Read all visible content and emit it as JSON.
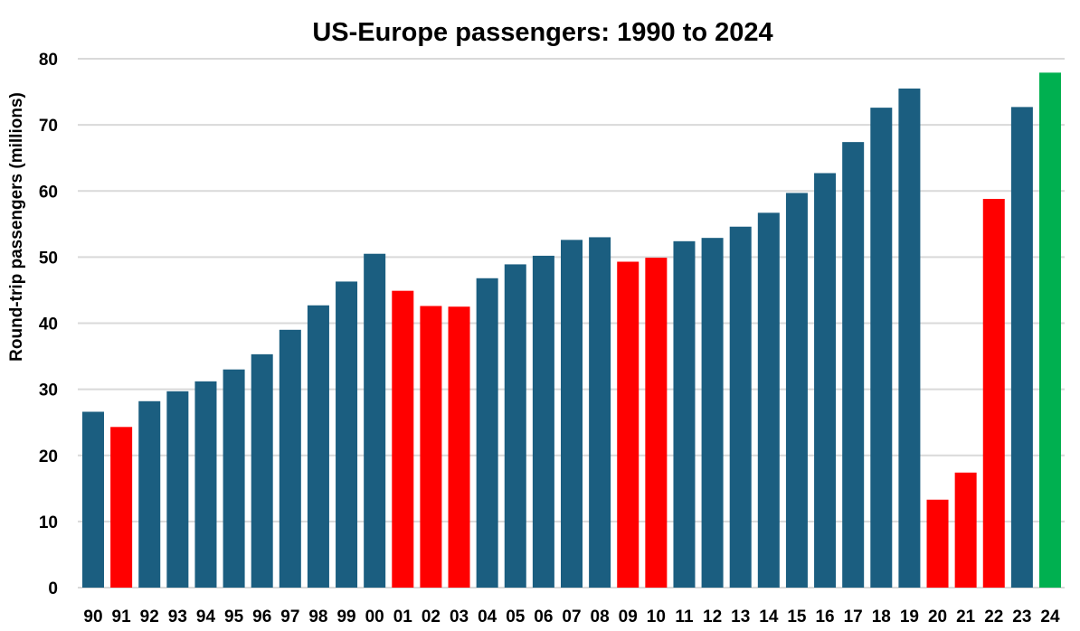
{
  "chart_data": {
    "type": "bar",
    "title": "US-Europe passengers: 1990 to 2024",
    "xlabel": "",
    "ylabel": "Round-trip passengers (millions)",
    "ylim": [
      0,
      80
    ],
    "yticks": [
      0,
      10,
      20,
      30,
      40,
      50,
      60,
      70,
      80
    ],
    "grid": true,
    "legend": "none",
    "categories": [
      "90",
      "91",
      "92",
      "93",
      "94",
      "95",
      "96",
      "97",
      "98",
      "99",
      "00",
      "01",
      "02",
      "03",
      "04",
      "05",
      "06",
      "07",
      "08",
      "09",
      "10",
      "11",
      "12",
      "13",
      "14",
      "15",
      "16",
      "17",
      "18",
      "19",
      "20",
      "21",
      "22",
      "23",
      "24"
    ],
    "values": [
      26.6,
      24.3,
      28.2,
      29.7,
      31.2,
      33.0,
      35.3,
      39.0,
      42.7,
      46.3,
      50.5,
      44.9,
      42.6,
      42.5,
      46.8,
      48.9,
      50.2,
      52.6,
      53.0,
      49.3,
      49.9,
      52.4,
      52.9,
      54.6,
      56.7,
      59.7,
      62.7,
      67.4,
      72.6,
      75.5,
      13.3,
      17.4,
      58.8,
      72.7,
      77.9
    ],
    "bar_status": [
      "growth",
      "decline",
      "growth",
      "growth",
      "growth",
      "growth",
      "growth",
      "growth",
      "growth",
      "growth",
      "growth",
      "decline",
      "decline",
      "decline",
      "growth",
      "growth",
      "growth",
      "growth",
      "growth",
      "decline",
      "decline",
      "growth",
      "growth",
      "growth",
      "growth",
      "growth",
      "growth",
      "growth",
      "growth",
      "growth",
      "decline",
      "decline",
      "decline",
      "growth",
      "record"
    ],
    "colors": {
      "growth": "#1b5e80",
      "decline": "#ff0000",
      "record": "#00b050"
    }
  }
}
